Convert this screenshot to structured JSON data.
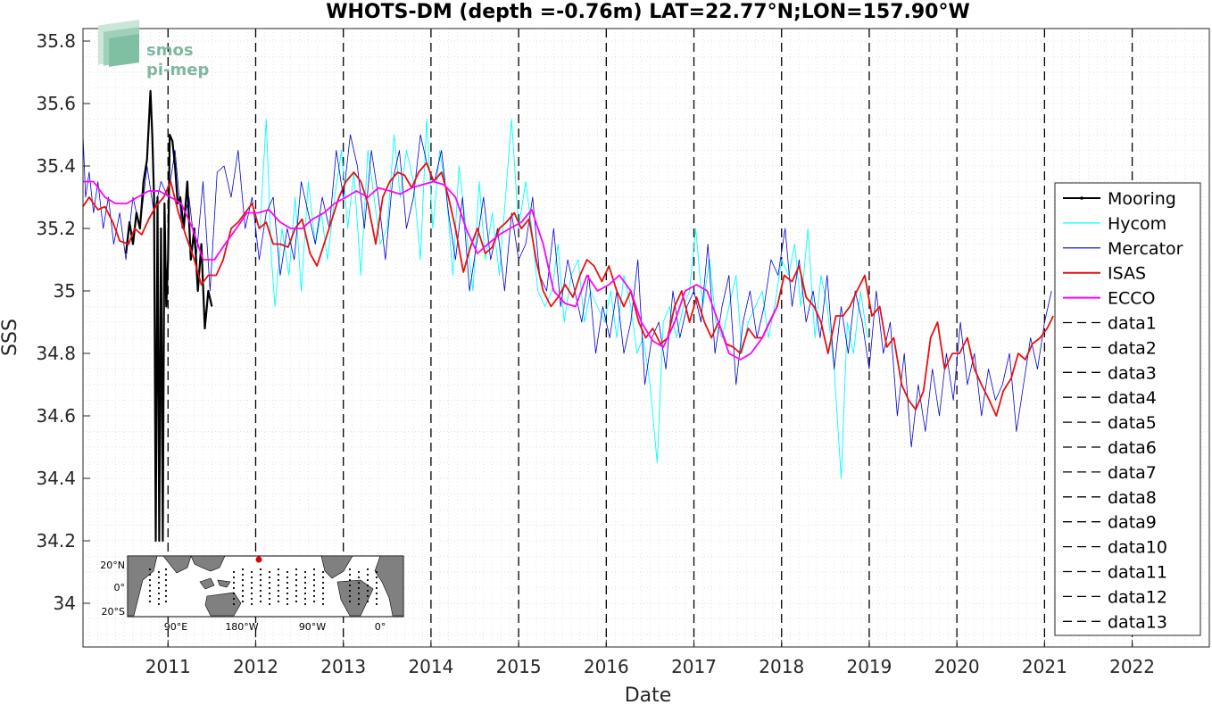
{
  "chart_data": {
    "type": "line",
    "title": "WHOTS-DM (depth =-0.76m) LAT=22.77°N;LON=157.90°W",
    "xlabel": "Date",
    "ylabel": "SSS",
    "xlim": [
      2010.03,
      2022.88
    ],
    "ylim": [
      33.86,
      35.84
    ],
    "x_ticks": [
      "2011",
      "2012",
      "2013",
      "2014",
      "2015",
      "2016",
      "2017",
      "2018",
      "2019",
      "2020",
      "2021",
      "2022"
    ],
    "y_ticks": [
      "34",
      "34.2",
      "34.4",
      "34.6",
      "34.8",
      "35",
      "35.2",
      "35.4",
      "35.6",
      "35.8"
    ],
    "grid": "dotted",
    "legend_position": "right",
    "series": [
      {
        "name": "Mooring",
        "color": "#000000",
        "x": [
          2010.52,
          2010.56,
          2010.6,
          2010.64,
          2010.68,
          2010.72,
          2010.76,
          2010.8,
          2010.82,
          2010.84,
          2010.86,
          2010.88,
          2010.9,
          2010.92,
          2010.94,
          2010.96,
          2010.98,
          2011.0,
          2011.02,
          2011.05,
          2011.08,
          2011.11,
          2011.14,
          2011.18,
          2011.22,
          2011.26,
          2011.3,
          2011.34,
          2011.38,
          2011.42,
          2011.46,
          2011.5
        ],
        "y": [
          35.12,
          35.22,
          35.15,
          35.25,
          35.2,
          35.35,
          35.42,
          35.64,
          35.5,
          35.3,
          34.2,
          35.3,
          34.2,
          35.2,
          34.2,
          35.28,
          34.95,
          35.1,
          35.5,
          35.48,
          35.4,
          35.28,
          35.3,
          35.2,
          35.35,
          35.1,
          35.2,
          35.0,
          35.15,
          34.88,
          35.0,
          34.95
        ]
      },
      {
        "name": "Hycom",
        "color": "#00ffff",
        "x": [
          2012.05,
          2012.12,
          2012.18,
          2012.22,
          2012.3,
          2012.38,
          2012.45,
          2012.52,
          2012.6,
          2012.68,
          2012.75,
          2012.82,
          2012.9,
          2012.98,
          2013.05,
          2013.12,
          2013.2,
          2013.28,
          2013.35,
          2013.42,
          2013.5,
          2013.58,
          2013.65,
          2013.72,
          2013.8,
          2013.88,
          2013.95,
          2014.02,
          2014.1,
          2014.18,
          2014.25,
          2014.32,
          2014.4,
          2014.48,
          2014.55,
          2014.62,
          2014.7,
          2014.78,
          2014.85,
          2014.92,
          2015.0,
          2015.08,
          2015.15,
          2015.22,
          2015.3,
          2015.38,
          2015.45,
          2015.52,
          2015.6,
          2015.68,
          2015.75,
          2015.82,
          2015.9,
          2015.98,
          2016.05,
          2016.12,
          2016.2,
          2016.28,
          2016.35,
          2016.42,
          2016.5,
          2016.58,
          2016.65,
          2016.72,
          2016.8,
          2016.88,
          2016.95,
          2017.02,
          2017.1,
          2017.18,
          2017.25,
          2017.32,
          2017.4,
          2017.48,
          2017.55,
          2017.62,
          2017.7,
          2017.78,
          2017.85,
          2017.92,
          2018.0,
          2018.08,
          2018.15,
          2018.22,
          2018.3,
          2018.38,
          2018.45,
          2018.52,
          2018.6,
          2018.68,
          2018.75,
          2018.82,
          2018.9,
          2018.98
        ],
        "y": [
          35.2,
          35.55,
          35.1,
          34.95,
          35.2,
          35.05,
          35.3,
          35.0,
          35.35,
          35.15,
          35.25,
          35.1,
          35.3,
          35.45,
          35.2,
          35.38,
          35.05,
          35.45,
          35.3,
          35.15,
          35.2,
          35.5,
          35.3,
          35.45,
          35.35,
          35.1,
          35.55,
          35.2,
          35.45,
          35.3,
          35.05,
          35.4,
          35.2,
          35.0,
          35.35,
          35.1,
          35.25,
          35.05,
          35.3,
          35.55,
          35.2,
          35.35,
          35.2,
          35.0,
          34.95,
          35.0,
          35.15,
          34.9,
          35.05,
          35.1,
          34.9,
          35.0,
          34.95,
          34.9,
          35.0,
          34.85,
          35.05,
          34.95,
          34.8,
          34.85,
          34.7,
          34.45,
          34.9,
          34.95,
          34.85,
          34.95,
          35.0,
          35.2,
          34.95,
          35.1,
          34.9,
          34.85,
          34.95,
          35.05,
          34.8,
          34.9,
          34.95,
          35.0,
          34.85,
          34.95,
          35.1,
          35.05,
          35.15,
          34.95,
          35.2,
          34.85,
          35.05,
          34.95,
          34.75,
          34.4,
          34.9,
          34.8,
          35.0,
          34.85
        ]
      },
      {
        "name": "Mercator",
        "color": "#0000cc",
        "x": [
          2010.03,
          2010.06,
          2010.1,
          2010.15,
          2010.2,
          2010.26,
          2010.32,
          2010.38,
          2010.45,
          2010.52,
          2010.6,
          2010.68,
          2010.76,
          2010.84,
          2010.92,
          2011.0,
          2011.08,
          2011.16,
          2011.24,
          2011.32,
          2011.4,
          2011.48,
          2011.56,
          2011.64,
          2011.72,
          2011.8,
          2011.88,
          2011.96,
          2012.04,
          2012.12,
          2012.2,
          2012.28,
          2012.36,
          2012.44,
          2012.52,
          2012.6,
          2012.68,
          2012.76,
          2012.84,
          2012.92,
          2013.0,
          2013.08,
          2013.16,
          2013.24,
          2013.32,
          2013.4,
          2013.48,
          2013.56,
          2013.64,
          2013.72,
          2013.8,
          2013.88,
          2013.96,
          2014.04,
          2014.12,
          2014.2,
          2014.28,
          2014.36,
          2014.44,
          2014.52,
          2014.6,
          2014.68,
          2014.76,
          2014.84,
          2014.92,
          2015.0,
          2015.08,
          2015.16,
          2015.24,
          2015.32,
          2015.4,
          2015.48,
          2015.56,
          2015.64,
          2015.72,
          2015.8,
          2015.88,
          2015.96,
          2016.04,
          2016.12,
          2016.2,
          2016.28,
          2016.36,
          2016.44,
          2016.52,
          2016.6,
          2016.68,
          2016.76,
          2016.84,
          2016.92,
          2017.0,
          2017.08,
          2017.16,
          2017.24,
          2017.32,
          2017.4,
          2017.48,
          2017.56,
          2017.64,
          2017.72,
          2017.8,
          2017.88,
          2017.96,
          2018.04,
          2018.12,
          2018.2,
          2018.28,
          2018.36,
          2018.44,
          2018.52,
          2018.6,
          2018.68,
          2018.76,
          2018.84,
          2018.92,
          2019.0,
          2019.08,
          2019.16,
          2019.24,
          2019.32,
          2019.4,
          2019.48,
          2019.56,
          2019.64,
          2019.72,
          2019.8,
          2019.88,
          2019.96,
          2020.04,
          2020.12,
          2020.2,
          2020.28,
          2020.36,
          2020.44,
          2020.52,
          2020.6,
          2020.68,
          2020.76,
          2020.84,
          2020.92,
          2021.0,
          2021.08
        ],
        "y": [
          35.5,
          35.3,
          35.38,
          35.25,
          35.35,
          35.2,
          35.3,
          35.15,
          35.25,
          35.1,
          35.3,
          35.2,
          35.4,
          35.25,
          35.35,
          35.3,
          35.45,
          35.2,
          35.3,
          35.1,
          35.35,
          35.0,
          35.38,
          35.4,
          35.3,
          35.45,
          35.2,
          35.3,
          35.1,
          35.25,
          35.3,
          35.05,
          35.2,
          35.1,
          35.35,
          35.25,
          35.15,
          35.3,
          35.2,
          35.45,
          35.3,
          35.5,
          35.4,
          35.2,
          35.45,
          35.3,
          35.1,
          35.35,
          35.45,
          35.2,
          35.3,
          35.5,
          35.4,
          35.35,
          35.45,
          35.25,
          35.1,
          35.3,
          35.0,
          35.15,
          35.3,
          35.1,
          35.2,
          35.0,
          35.25,
          35.1,
          35.15,
          35.3,
          35.05,
          35.0,
          35.2,
          34.95,
          35.1,
          35.0,
          34.9,
          35.05,
          34.8,
          34.95,
          34.85,
          35.0,
          34.8,
          34.9,
          35.1,
          34.7,
          34.85,
          34.9,
          34.75,
          35.0,
          34.85,
          34.95,
          35.0,
          34.9,
          35.15,
          34.8,
          34.95,
          35.05,
          34.7,
          34.9,
          35.0,
          34.85,
          34.95,
          35.1,
          35.05,
          35.2,
          34.95,
          35.1,
          34.9,
          35.0,
          34.85,
          35.05,
          34.75,
          34.95,
          34.8,
          35.0,
          34.9,
          34.75,
          35.0,
          34.8,
          34.9,
          34.6,
          34.8,
          34.5,
          34.7,
          34.55,
          34.75,
          34.6,
          34.8,
          34.65,
          34.9,
          34.7,
          34.8,
          34.6,
          34.75,
          34.65,
          34.7,
          34.8,
          34.55,
          34.7,
          34.85,
          34.75,
          34.9,
          35.0
        ]
      },
      {
        "name": "ISAS",
        "color": "#e81010",
        "x": [
          2010.03,
          2010.1,
          2010.2,
          2010.28,
          2010.37,
          2010.45,
          2010.55,
          2010.62,
          2010.7,
          2010.78,
          2010.86,
          2010.95,
          2011.03,
          2011.12,
          2011.2,
          2011.3,
          2011.38,
          2011.46,
          2011.55,
          2011.63,
          2011.72,
          2011.8,
          2011.88,
          2011.96,
          2012.04,
          2012.12,
          2012.2,
          2012.28,
          2012.37,
          2012.45,
          2012.53,
          2012.62,
          2012.7,
          2012.78,
          2012.86,
          2012.95,
          2013.03,
          2013.12,
          2013.2,
          2013.28,
          2013.37,
          2013.45,
          2013.53,
          2013.62,
          2013.7,
          2013.78,
          2013.86,
          2013.95,
          2014.03,
          2014.12,
          2014.2,
          2014.28,
          2014.37,
          2014.45,
          2014.53,
          2014.62,
          2014.7,
          2014.78,
          2014.86,
          2014.95,
          2015.03,
          2015.12,
          2015.2,
          2015.28,
          2015.37,
          2015.45,
          2015.53,
          2015.62,
          2015.7,
          2015.78,
          2015.86,
          2015.95,
          2016.03,
          2016.12,
          2016.2,
          2016.28,
          2016.37,
          2016.45,
          2016.53,
          2016.62,
          2016.7,
          2016.78,
          2016.86,
          2016.95,
          2017.03,
          2017.12,
          2017.2,
          2017.28,
          2017.37,
          2017.45,
          2017.53,
          2017.62,
          2017.7,
          2017.78,
          2017.86,
          2017.95,
          2018.03,
          2018.12,
          2018.2,
          2018.28,
          2018.37,
          2018.45,
          2018.53,
          2018.62,
          2018.7,
          2018.78,
          2018.86,
          2018.95,
          2019.03,
          2019.12,
          2019.2,
          2019.28,
          2019.37,
          2019.45,
          2019.53,
          2019.62,
          2019.7,
          2019.78,
          2019.86,
          2019.95,
          2020.03,
          2020.12,
          2020.2,
          2020.28,
          2020.37,
          2020.45,
          2020.53,
          2020.62,
          2020.7,
          2020.78,
          2020.86,
          2020.95,
          2021.03,
          2021.1
        ],
        "y": [
          35.27,
          35.3,
          35.26,
          35.27,
          35.22,
          35.16,
          35.15,
          35.2,
          35.18,
          35.23,
          35.27,
          35.3,
          35.35,
          35.25,
          35.18,
          35.1,
          35.02,
          35.05,
          35.05,
          35.1,
          35.2,
          35.22,
          35.25,
          35.28,
          35.2,
          35.22,
          35.15,
          35.15,
          35.14,
          35.2,
          35.23,
          35.12,
          35.08,
          35.15,
          35.22,
          35.3,
          35.35,
          35.38,
          35.35,
          35.28,
          35.15,
          35.3,
          35.35,
          35.38,
          35.37,
          35.33,
          35.38,
          35.41,
          35.35,
          35.38,
          35.3,
          35.2,
          35.06,
          35.14,
          35.2,
          35.12,
          35.14,
          35.2,
          35.22,
          35.25,
          35.2,
          35.23,
          35.1,
          35.0,
          34.95,
          34.98,
          35.02,
          34.98,
          35.05,
          35.1,
          35.08,
          35.03,
          35.08,
          35.0,
          34.95,
          35.0,
          34.9,
          34.85,
          34.88,
          34.83,
          34.85,
          34.95,
          35.0,
          34.9,
          34.98,
          34.9,
          34.85,
          34.9,
          34.83,
          34.82,
          34.8,
          34.88,
          34.85,
          34.85,
          34.9,
          34.95,
          35.05,
          35.03,
          35.08,
          34.98,
          34.95,
          34.9,
          34.8,
          34.92,
          34.92,
          34.95,
          35.0,
          35.05,
          34.92,
          34.95,
          34.82,
          34.85,
          34.7,
          34.65,
          34.62,
          34.68,
          34.85,
          34.9,
          34.75,
          34.8,
          34.8,
          34.85,
          34.75,
          34.7,
          34.65,
          34.6,
          34.68,
          34.72,
          34.8,
          34.78,
          34.83,
          34.85,
          34.88,
          34.92
        ]
      },
      {
        "name": "ECCO",
        "color": "#ff00ff",
        "x": [
          2010.03,
          2010.15,
          2010.28,
          2010.4,
          2010.53,
          2010.65,
          2010.78,
          2010.9,
          2011.03,
          2011.15,
          2011.28,
          2011.4,
          2011.53,
          2011.65,
          2011.78,
          2011.9,
          2012.03,
          2012.15,
          2012.28,
          2012.4,
          2012.53,
          2012.65,
          2012.78,
          2012.9,
          2013.03,
          2013.15,
          2013.28,
          2013.4,
          2013.53,
          2013.65,
          2013.78,
          2013.9,
          2014.03,
          2014.15,
          2014.28,
          2014.4,
          2014.53,
          2014.65,
          2014.78,
          2014.9,
          2015.03,
          2015.15,
          2015.28,
          2015.4,
          2015.53,
          2015.65,
          2015.78,
          2015.9,
          2016.03,
          2016.15,
          2016.28,
          2016.4,
          2016.53,
          2016.65,
          2016.78,
          2016.9,
          2017.03,
          2017.15,
          2017.28,
          2017.4,
          2017.53,
          2017.65,
          2017.78,
          2017.95
        ],
        "y": [
          35.35,
          35.35,
          35.3,
          35.28,
          35.28,
          35.3,
          35.32,
          35.32,
          35.3,
          35.28,
          35.2,
          35.1,
          35.1,
          35.15,
          35.2,
          35.25,
          35.25,
          35.26,
          35.22,
          35.2,
          35.2,
          35.23,
          35.25,
          35.28,
          35.3,
          35.32,
          35.3,
          35.33,
          35.32,
          35.31,
          35.33,
          35.34,
          35.35,
          35.34,
          35.3,
          35.2,
          35.12,
          35.15,
          35.18,
          35.2,
          35.22,
          35.26,
          35.15,
          35.0,
          34.96,
          34.95,
          35.05,
          35.0,
          35.02,
          35.05,
          35.0,
          34.9,
          34.84,
          34.82,
          34.9,
          35.0,
          35.02,
          35.0,
          34.9,
          34.8,
          34.78,
          34.8,
          34.85,
          34.95
        ]
      }
    ],
    "vertical_dashed_lines": {
      "color": "#000000",
      "x": [
        2011.0,
        2012.0,
        2013.0,
        2014.0,
        2015.0,
        2016.0,
        2017.0,
        2018.0,
        2019.0,
        2020.0,
        2021.0,
        2022.0
      ]
    },
    "legend": [
      "Mooring",
      "Hycom",
      "Mercator",
      "ISAS",
      "ECCO",
      "data1",
      "data2",
      "data3",
      "data4",
      "data5",
      "data6",
      "data7",
      "data8",
      "data9",
      "data10",
      "data11",
      "data12",
      "data13"
    ],
    "inset_map": {
      "lat_labels": [
        "20°N",
        "0°",
        "20°S"
      ],
      "lon_labels": [
        "90°E",
        "180°W",
        "90°W",
        "0°"
      ],
      "land_color": "#808080",
      "marker_color": "#e00000"
    },
    "logo": {
      "line1": "smos",
      "line2": "pi-mep"
    }
  }
}
